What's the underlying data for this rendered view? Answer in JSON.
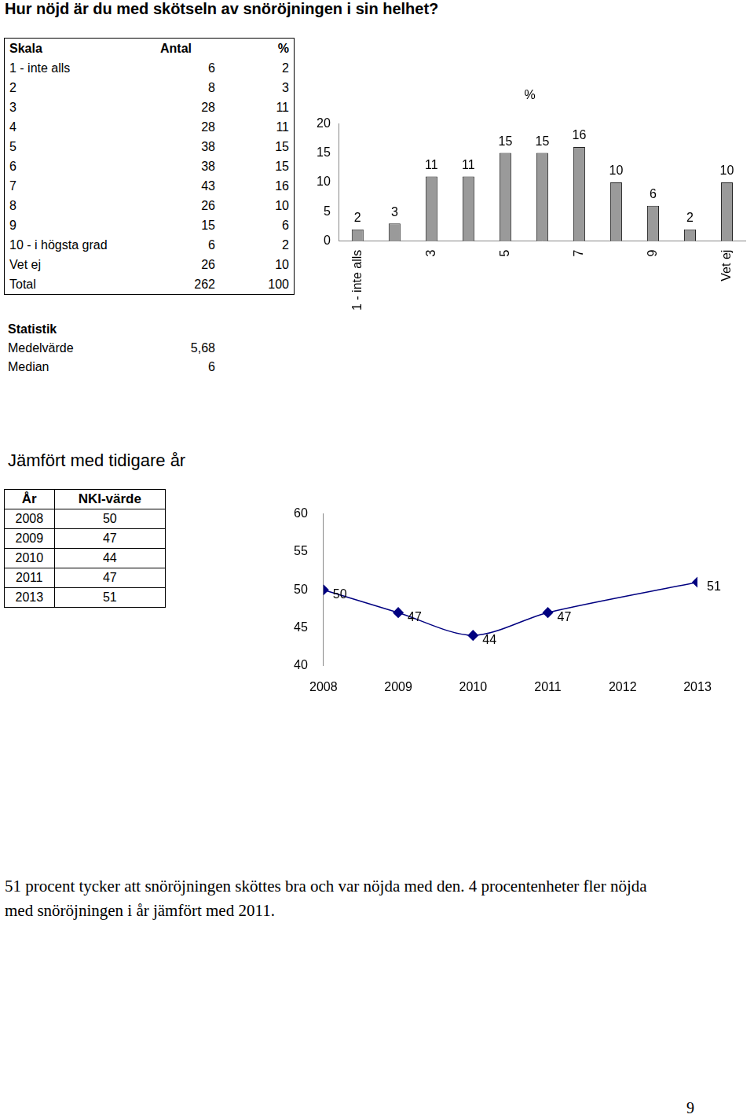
{
  "title": "Hur nöjd är du med skötseln av snöröjningen i sin helhet?",
  "distribution_table": {
    "header": [
      "Skala",
      "Antal",
      "%"
    ],
    "rows": [
      [
        "1 - inte alls",
        6,
        2
      ],
      [
        "2",
        8,
        3
      ],
      [
        "3",
        28,
        11
      ],
      [
        "4",
        28,
        11
      ],
      [
        "5",
        38,
        15
      ],
      [
        "6",
        38,
        15
      ],
      [
        "7",
        43,
        16
      ],
      [
        "8",
        26,
        10
      ],
      [
        "9",
        15,
        6
      ],
      [
        "10 - i högsta grad",
        6,
        2
      ],
      [
        "Vet ej",
        26,
        10
      ],
      [
        "Total",
        262,
        100
      ]
    ]
  },
  "statistics": {
    "heading": "Statistik",
    "rows": [
      [
        "Medelvärde",
        "5,68"
      ],
      [
        "Median",
        6
      ]
    ]
  },
  "comparison": {
    "heading": "Jämfört med tidigare år",
    "table": {
      "header": [
        "År",
        "NKI-värde"
      ],
      "rows": [
        [
          2008,
          50
        ],
        [
          2009,
          47
        ],
        [
          2010,
          44
        ],
        [
          2011,
          47
        ],
        [
          2013,
          51
        ]
      ]
    }
  },
  "chart_data": [
    {
      "type": "bar",
      "title": "%",
      "categories": [
        "1 - inte alls",
        null,
        "3",
        null,
        "5",
        null,
        "7",
        null,
        "9",
        null,
        "Vet ej"
      ],
      "values": [
        2,
        3,
        11,
        11,
        15,
        15,
        16,
        10,
        6,
        2,
        10
      ],
      "color": "#9a9a9a",
      "ylim": [
        0,
        20
      ],
      "yticks": [
        0,
        5,
        10,
        15,
        20
      ],
      "grid": false,
      "data_labels": true
    },
    {
      "type": "line",
      "x": [
        2008,
        2009,
        2010,
        2011,
        2013
      ],
      "values": [
        50,
        47,
        44,
        47,
        51
      ],
      "color": "#000080",
      "marker": "diamond",
      "xlim": [
        2008,
        2013
      ],
      "xticks": [
        2008,
        2009,
        2010,
        2011,
        2012,
        2013
      ],
      "ylim": [
        40,
        60
      ],
      "yticks": [
        40,
        45,
        50,
        55,
        60
      ],
      "grid": false,
      "data_labels": true
    }
  ],
  "summary": "51 procent tycker att snöröjningen sköttes bra och var nöjda med den. 4 procentenheter fler nöjda med snöröjningen i år jämfört med 2011.",
  "page_number": 9
}
